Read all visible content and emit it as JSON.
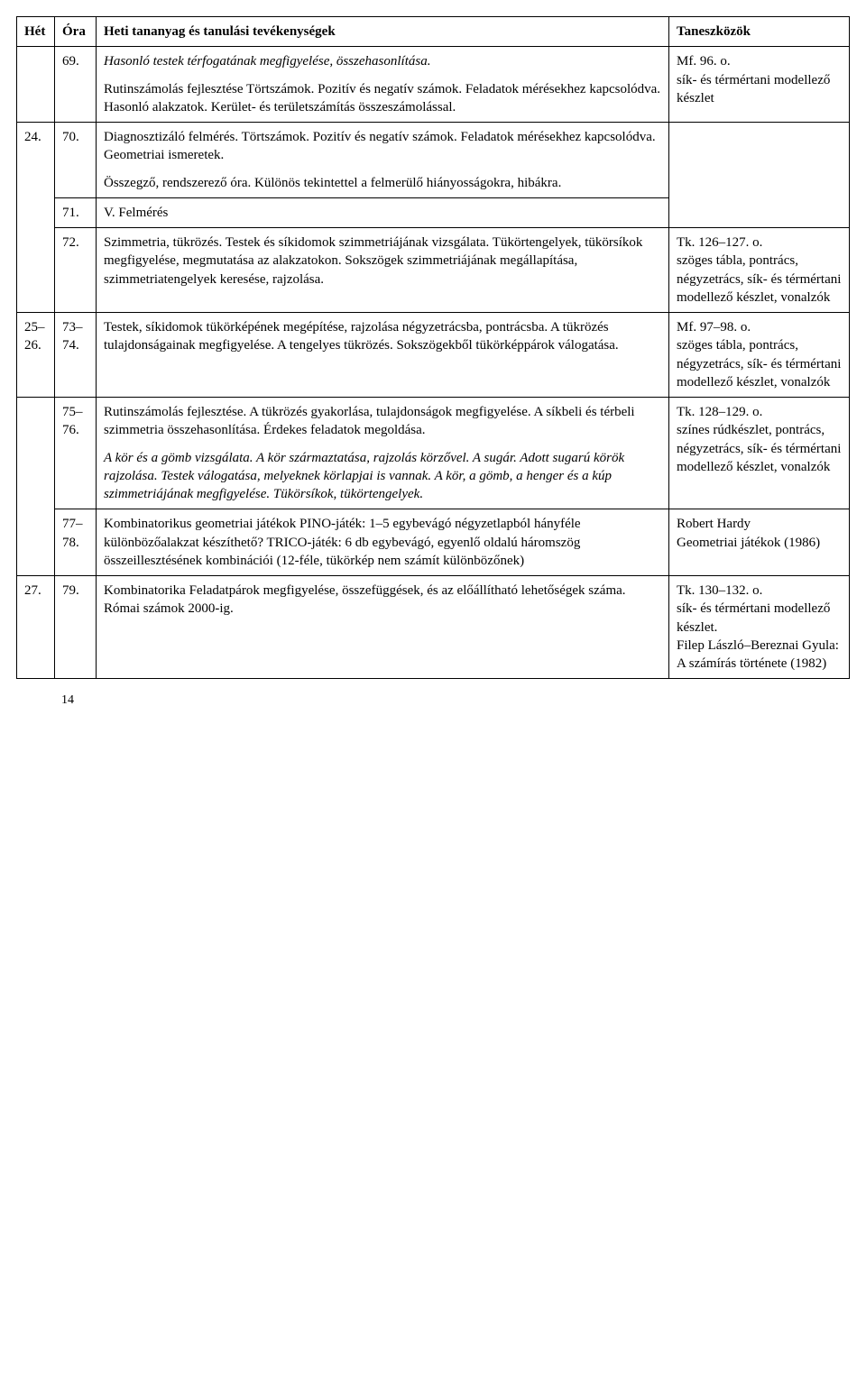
{
  "header": {
    "het": "Hét",
    "ora": "Óra",
    "content": "Heti tananyag és tanulási tevékenységek",
    "tools": "Taneszközök"
  },
  "rows": [
    {
      "het": "",
      "ora": "69.",
      "content_blocks": [
        {
          "text": "Hasonló testek térfogatának megfigyelése, összehasonlítása.",
          "italic": true
        },
        {
          "text": "Rutinszámolás fejlesztése\nTörtszámok. Pozitív és negatív számok. Feladatok mérésekhez kapcsolódva. Hasonló alakzatok. Kerület- és területszámítás összeszámolással."
        }
      ],
      "tools": "Mf. 96. o.\nsík- és térmértani modellező készlet"
    },
    {
      "het": "24.",
      "ora": "70.",
      "content_blocks": [
        {
          "text": "Diagnosztizáló felmérés.\nTörtszámok. Pozitív és negatív számok. Feladatok mérésekhez kapcsolódva. Geometriai ismeretek."
        },
        {
          "text": "Összegző, rendszerező óra.\nKülönös tekintettel a felmerülő hiányosságokra, hibákra."
        }
      ],
      "tools": ""
    },
    {
      "het": "",
      "ora": "71.",
      "content_blocks": [
        {
          "text": "V. Felmérés"
        }
      ],
      "tools": ""
    },
    {
      "het": "",
      "ora": "72.",
      "content_blocks": [
        {
          "text": "Szimmetria, tükrözés.\nTestek és síkidomok szimmetriájának vizsgálata.\nTükörtengelyek, tükörsíkok megfigyelése, megmutatása az alakzatokon. Sokszögek szimmetriájának megállapítása, szimmetriatengelyek keresése, rajzolása."
        }
      ],
      "tools": "Tk. 126–127. o.\nszöges tábla, pontrács, négyzetrács, sík- és térmértani modellező készlet, vonalzók"
    },
    {
      "het": "25–26.",
      "ora": "73–74.",
      "content_blocks": [
        {
          "text": "Testek, síkidomok tükörképének megépítése, rajzolása négyzetrácsba, pontrácsba.\nA tükrözés tulajdonságainak megfigyelése. A tengelyes tükrözés. Sokszögekből tükörképpárok válogatása."
        }
      ],
      "tools": "Mf. 97–98. o.\nszöges tábla, pontrács, négyzetrács, sík- és térmértani modellező készlet, vonalzók"
    },
    {
      "het": "",
      "ora": "75–76.",
      "content_blocks": [
        {
          "text": "Rutinszámolás fejlesztése.\nA tükrözés gyakorlása, tulajdonságok megfigyelése.\nA síkbeli és térbeli szimmetria összehasonlítása. Érdekes feladatok megoldása."
        },
        {
          "text": "A kör és a gömb vizsgálata. A kör származtatása, rajzolás körzővel. A sugár. Adott sugarú körök rajzolása.\nTestek válogatása, melyeknek körlapjai is vannak.\nA kör, a gömb, a henger és a kúp szimmetriájának megfigyelése. Tükörsíkok, tükörtengelyek.",
          "italic": true
        }
      ],
      "tools": "Tk. 128–129. o.\nszínes rúdkészlet, pontrács, négyzetrács, sík- és térmértani modellező készlet, vonalzók"
    },
    {
      "het": "",
      "ora": "77–78.",
      "content_blocks": [
        {
          "text": "Kombinatorikus geometriai játékok\nPINO-játék: 1–5 egybevágó négyzetlapból hányféle különbözőalakzat készíthető?\nTRICO-játék: 6 db egybevágó, egyenlő oldalú háromszög összeillesztésének kombinációi\n(12-féle, tükörkép nem számít különbözőnek)"
        }
      ],
      "tools": "Robert Hardy\nGeometriai játékok (1986)"
    },
    {
      "het": "27.",
      "ora": "79.",
      "content_blocks": [
        {
          "text": "Kombinatorika\nFeladatpárok megfigyelése, összefüggések, és az előállítható lehetőségek száma.\nRómai számok 2000-ig."
        }
      ],
      "tools": "Tk. 130–132. o.\nsík- és térmértani modellező készlet.\nFilep László–Bereznai Gyula: A számírás története (1982)"
    }
  ],
  "group_row_spans": {
    "r1_het_rowspan": 3,
    "r1_tools_rowspan": 3,
    "r5_het_rowspan": 2
  },
  "page_number": "14"
}
